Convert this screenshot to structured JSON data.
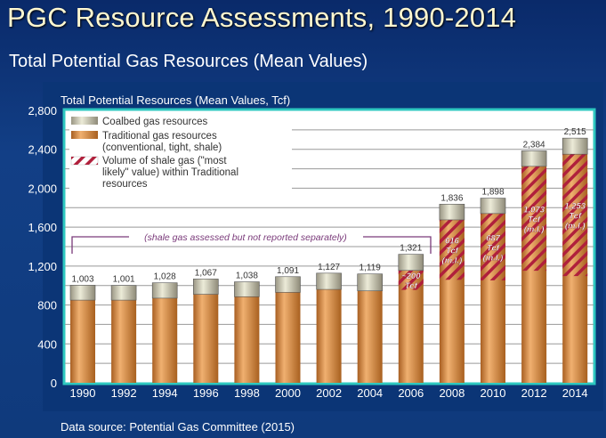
{
  "header": {
    "title": "PGC Resource Assessments, 1990-2014",
    "subtitle": "Total Potential Gas Resources (Mean Values)"
  },
  "footer": {
    "source": "Data source: Potential Gas Committee (2015)"
  },
  "chart_data": {
    "type": "bar",
    "stacked": true,
    "title": "Total Potential Resources (Mean Values, Tcf)",
    "xlabel": "",
    "ylabel": "Tcf",
    "ylim": [
      0,
      2800
    ],
    "yticks": [
      "0",
      "400",
      "800",
      "1,200",
      "1,600",
      "2,000",
      "2,400",
      "2,800"
    ],
    "ytick_values": [
      0,
      400,
      800,
      1200,
      1600,
      2000,
      2400,
      2800
    ],
    "grid": true,
    "categories": [
      "1990",
      "1992",
      "1994",
      "1996",
      "1998",
      "2000",
      "2002",
      "2004",
      "2006",
      "2008",
      "2010",
      "2012",
      "2014"
    ],
    "totals": [
      1003,
      1001,
      1028,
      1067,
      1038,
      1091,
      1127,
      1119,
      1321,
      1836,
      1898,
      2384,
      2515
    ],
    "total_labels": [
      "1,003",
      "1,001",
      "1,028",
      "1,067",
      "1,038",
      "1,091",
      "1,127",
      "1,119",
      "1,321",
      "1,836",
      "1,898",
      "2,384",
      "2,515"
    ],
    "series": [
      {
        "name": "Traditional gas resources (conventional, tight, shale)",
        "color": "#d08a3c",
        "values": [
          850,
          850,
          870,
          910,
          885,
          930,
          960,
          945,
          1155,
          1675,
          1740,
          2225,
          2350
        ]
      },
      {
        "name": "Coalbed gas resources",
        "color": "#cfcab0",
        "values": [
          153,
          151,
          158,
          157,
          153,
          161,
          167,
          174,
          166,
          161,
          158,
          159,
          165
        ]
      }
    ],
    "shale": {
      "name": "Volume of shale gas (\"most likely\" value) within Traditional resources",
      "color": "#b0203c",
      "values": [
        null,
        null,
        null,
        null,
        null,
        null,
        null,
        null,
        200,
        616,
        687,
        1073,
        1253
      ],
      "labels": [
        null,
        null,
        null,
        null,
        null,
        null,
        null,
        null,
        [
          "~200",
          "Tcf"
        ],
        [
          "616",
          "Tcf",
          "(m.l.)"
        ],
        [
          "687",
          "Tcf",
          "(m.l.)"
        ],
        [
          "1,073",
          "Tcf",
          "(m.l.)"
        ],
        [
          "1,253",
          "Tcf",
          "(m.l.)"
        ]
      ]
    },
    "legend": {
      "placement": "top-left",
      "entries": [
        "Coalbed gas resources",
        "Traditional gas resources",
        "(conventional, tight, shale)",
        "Volume of shale gas (\"most",
        "likely\" value) within Traditional",
        "resources"
      ]
    },
    "annotation": "(shale gas assessed but not reported separately)"
  }
}
